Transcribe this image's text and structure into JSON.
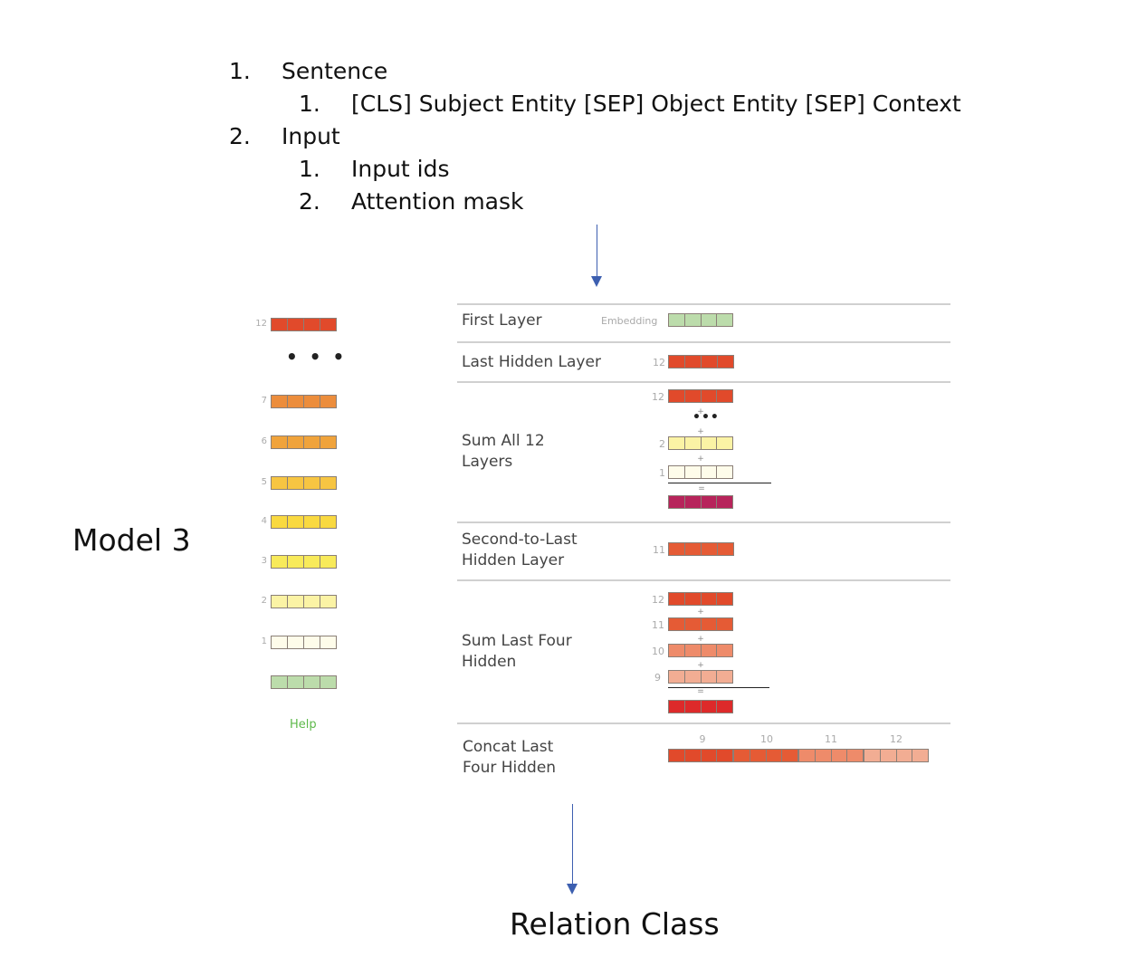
{
  "outline": [
    {
      "number": "1.",
      "text": "Sentence",
      "children": [
        {
          "number": "1.",
          "text": "[CLS] Subject Entity [SEP] Object Entity [SEP] Context"
        }
      ]
    },
    {
      "number": "2.",
      "text": "Input",
      "children": [
        {
          "number": "1.",
          "text": "Input ids"
        },
        {
          "number": "2.",
          "text": "Attention mask"
        }
      ]
    }
  ],
  "model_label": "Model 3",
  "result_label": "Relation Class",
  "layer_stack": {
    "top_index": "12",
    "ellipsis": "• • •",
    "rows": [
      {
        "index": "7"
      },
      {
        "index": "6"
      },
      {
        "index": "5"
      },
      {
        "index": "4"
      },
      {
        "index": "3"
      },
      {
        "index": "2"
      },
      {
        "index": "1"
      },
      {
        "index": ""
      }
    ],
    "help_text": "Help"
  },
  "strategies": [
    {
      "label": "First Layer",
      "sublabel": "Embedding"
    },
    {
      "label": "Last Hidden Layer",
      "index": "12"
    },
    {
      "label": "Sum All 12\nLayers",
      "indices": [
        "12",
        "2",
        "1"
      ],
      "ops": [
        "+",
        "+",
        "+",
        "="
      ],
      "ellipsis": "•••"
    },
    {
      "label": "Second-to-Last\nHidden Layer",
      "index": "11"
    },
    {
      "label": "Sum Last Four\nHidden",
      "indices": [
        "12",
        "11",
        "10",
        "9"
      ],
      "ops": [
        "+",
        "+",
        "+",
        "="
      ]
    },
    {
      "label": "Concat Last\nFour Hidden",
      "ticks": [
        "9",
        "10",
        "11",
        "12"
      ]
    }
  ],
  "colors": {
    "l12": "#e14a2b",
    "l11": "#e55b35",
    "l10": "#ee8b6a",
    "l9": "#f2ad93",
    "l7": "#ec8d3c",
    "l6": "#f0a33b",
    "l5": "#f7c542",
    "l4": "#f9d940",
    "l3": "#f8ea5a",
    "l2": "#fbf3a5",
    "l1": "#fefcea",
    "embed": "#bcdcab",
    "sum_all": "#b7245b",
    "sum_four": "#dd2a2a",
    "arrow": "#3d5fb0"
  }
}
